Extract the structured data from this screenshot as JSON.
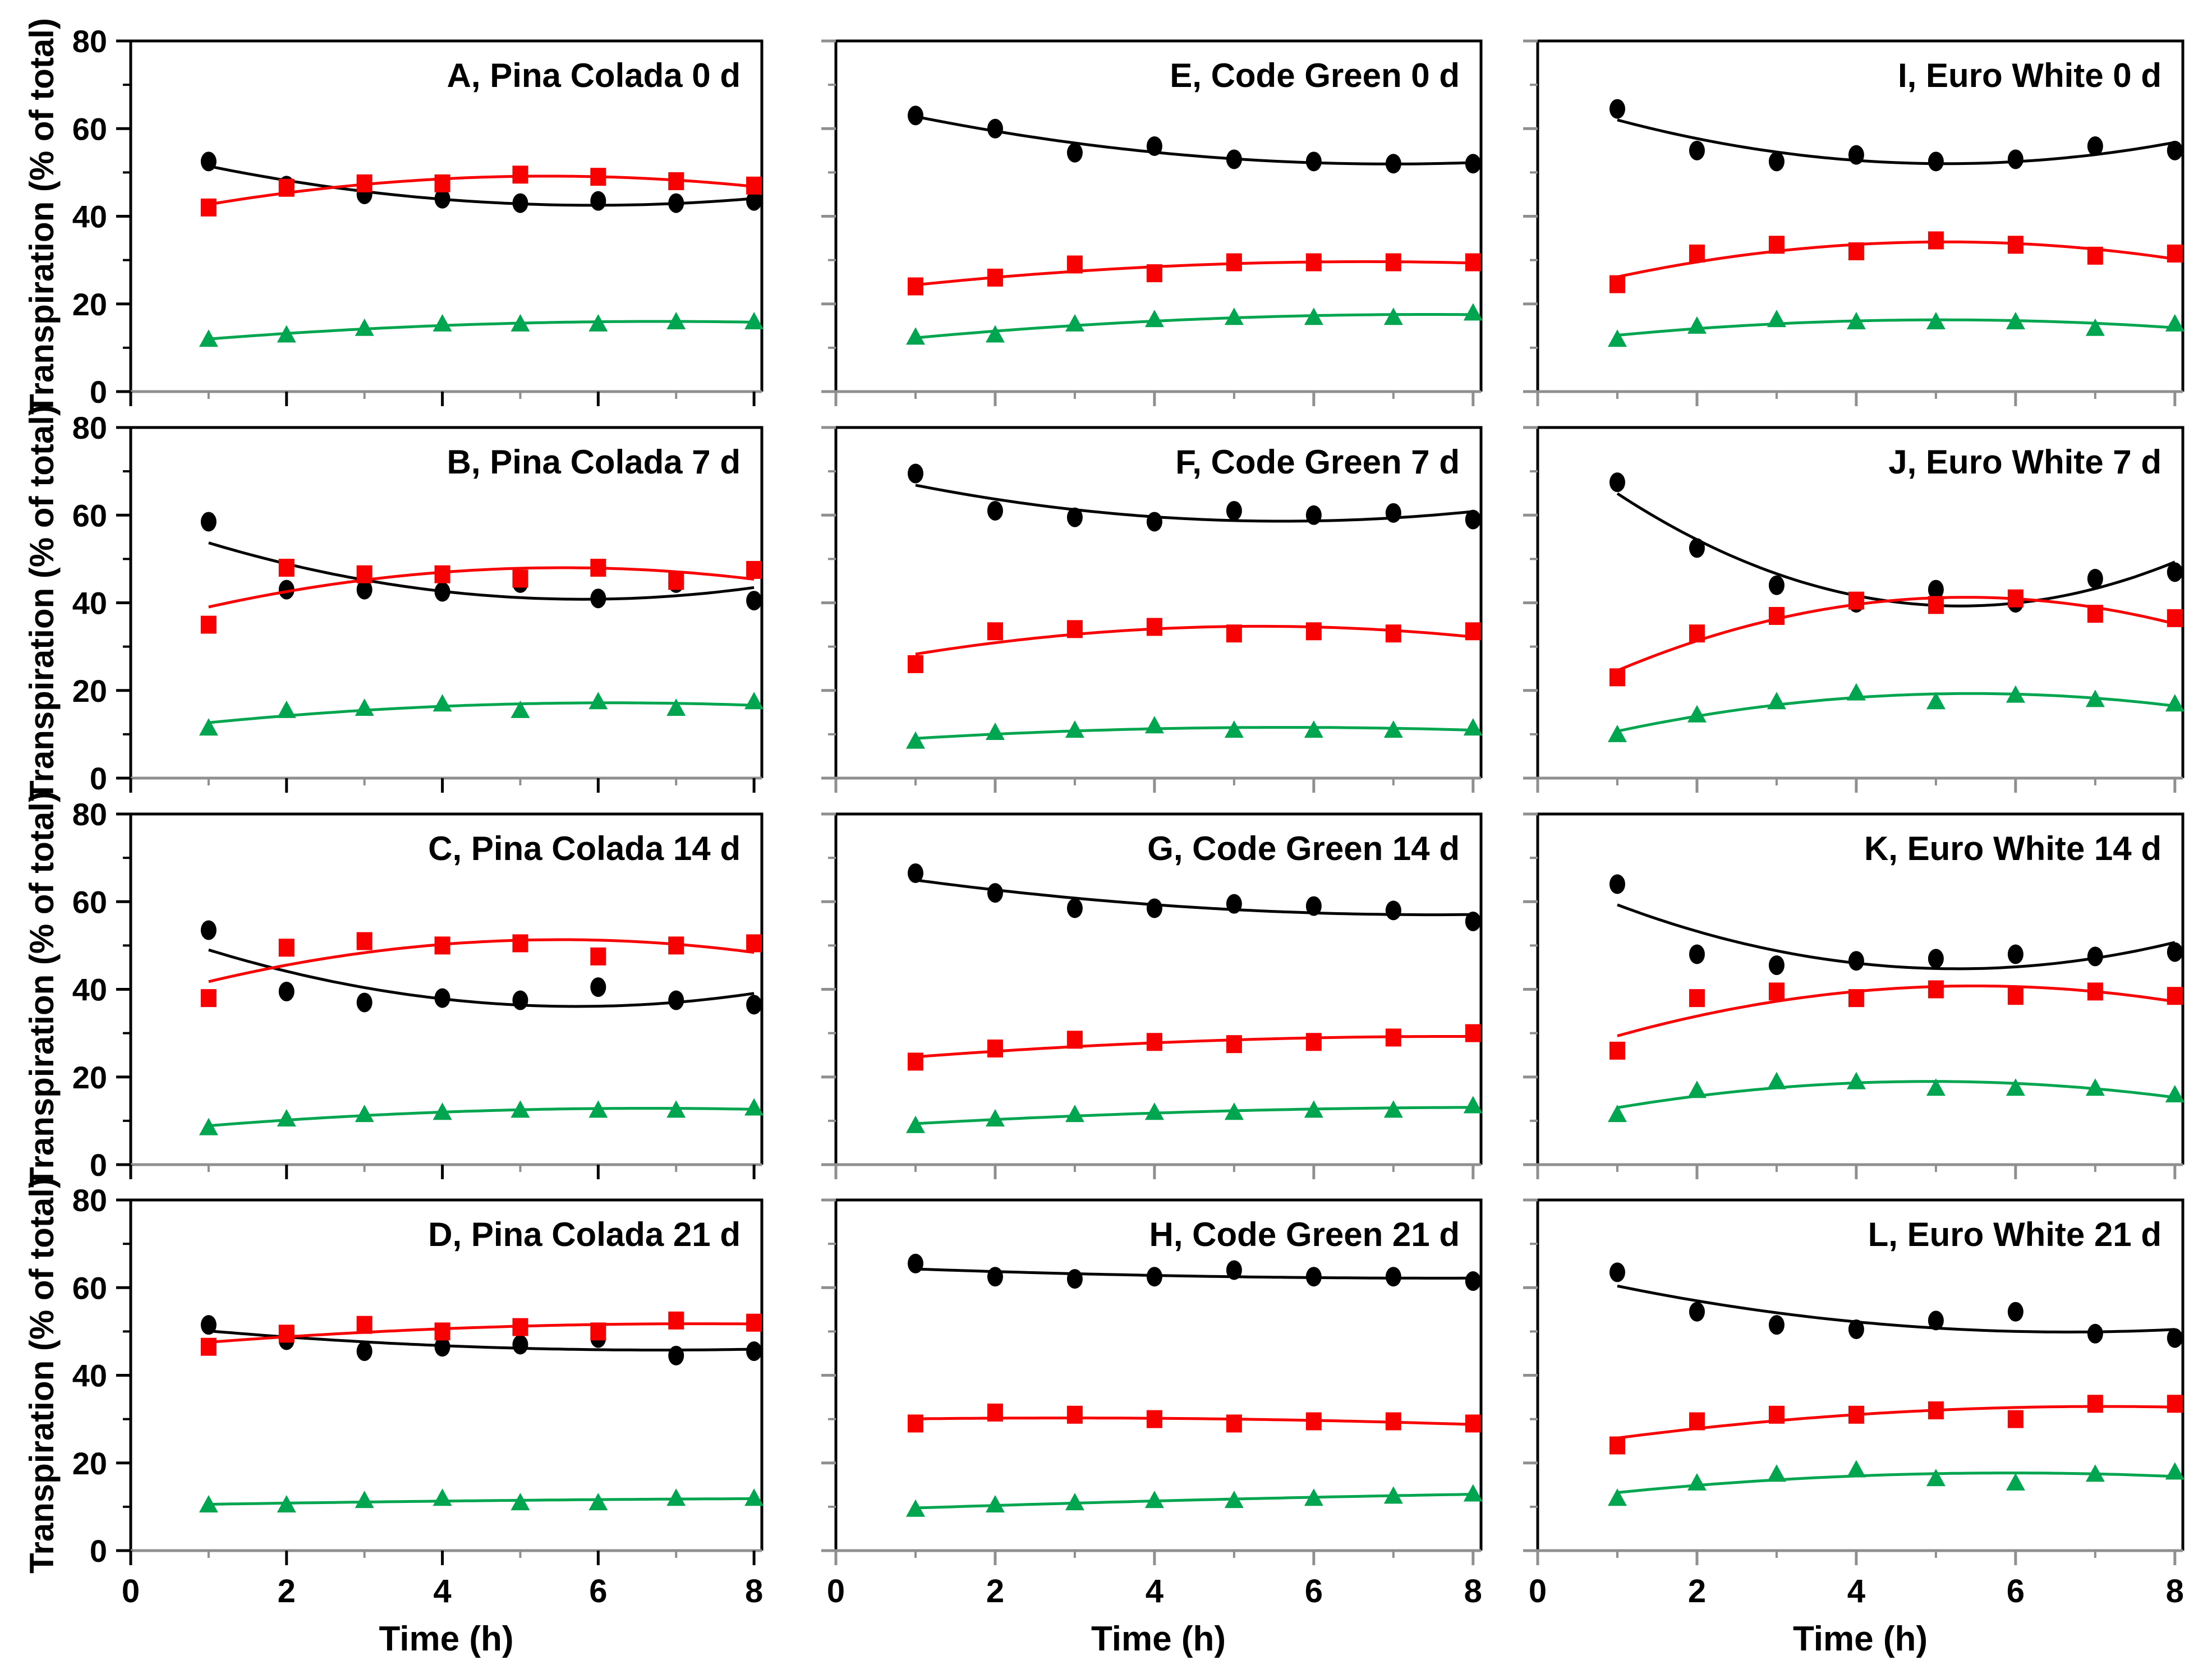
{
  "figure": {
    "description": "12-panel transpiration time-course figure, 3 cultivar columns by 4 storage-day rows",
    "columns": [
      "Pina Colada",
      "Code Green",
      "Euro White"
    ],
    "storage_days": [
      "0 d",
      "7 d",
      "14 d",
      "21 d"
    ]
  },
  "chart_data": {
    "type": "scatter",
    "x": [
      1,
      2,
      3,
      4,
      5,
      6,
      7,
      8
    ],
    "xlabel": "Time (h)",
    "ylabel": "Transpiration (% of total)",
    "xlim": [
      0,
      8.1
    ],
    "ylim": [
      0,
      80
    ],
    "x_ticks": [
      0,
      2,
      4,
      6,
      8
    ],
    "x_minor_ticks": [
      1,
      3,
      5,
      7
    ],
    "y_ticks": [
      0,
      20,
      40,
      60,
      80
    ],
    "y_minor_ticks": [
      10,
      30,
      50,
      70
    ],
    "grid": "off",
    "legend": "none",
    "fit": "quadratic-trendline-per-series",
    "series_style": {
      "black": {
        "marker": "circle",
        "color": "#000000"
      },
      "red": {
        "marker": "square",
        "color": "#F80000"
      },
      "green": {
        "marker": "triangle",
        "color": "#00A550"
      }
    },
    "panels": [
      {
        "id": "A",
        "title": "A, Pina Colada 0 d",
        "row": 0,
        "col": 0,
        "series": [
          {
            "name": "black-circle",
            "values": [
              52.5,
              47,
              45,
              44,
              43,
              43.5,
              43,
              43.5
            ]
          },
          {
            "name": "red-square",
            "values": [
              42,
              46.5,
              47.5,
              47.5,
              49.5,
              49,
              48,
              47
            ]
          },
          {
            "name": "green-triangle",
            "values": [
              12,
              13,
              14.5,
              15.5,
              15.5,
              15.5,
              16,
              16
            ]
          }
        ]
      },
      {
        "id": "B",
        "title": "B, Pina Colada 7 d",
        "row": 1,
        "col": 0,
        "series": [
          {
            "name": "black-circle",
            "values": [
              58.5,
              43,
              43,
              42.5,
              44.5,
              41,
              44.5,
              40.5
            ]
          },
          {
            "name": "red-square",
            "values": [
              35,
              48,
              46.5,
              46.5,
              45.5,
              48,
              45,
              47.5
            ]
          },
          {
            "name": "green-triangle",
            "values": [
              11.5,
              15.5,
              16,
              17,
              15.5,
              17.5,
              16,
              17.5
            ]
          }
        ]
      },
      {
        "id": "C",
        "title": "C, Pina Colada 14 d",
        "row": 2,
        "col": 0,
        "series": [
          {
            "name": "black-circle",
            "values": [
              53.5,
              39.5,
              37,
              38,
              37.5,
              40.5,
              37.5,
              36.5
            ]
          },
          {
            "name": "red-square",
            "values": [
              38,
              49.5,
              51,
              50,
              50.5,
              47.5,
              50,
              50.5
            ]
          },
          {
            "name": "green-triangle",
            "values": [
              8.5,
              10.5,
              11.5,
              12,
              12.5,
              12.5,
              12.5,
              13
            ]
          }
        ]
      },
      {
        "id": "D",
        "title": "D, Pina Colada 21 d",
        "row": 3,
        "col": 0,
        "series": [
          {
            "name": "black-circle",
            "values": [
              51.5,
              48,
              45.5,
              46.5,
              47,
              48.5,
              44.5,
              45.5
            ]
          },
          {
            "name": "red-square",
            "values": [
              46.5,
              49.5,
              51.5,
              50,
              51,
              50,
              52.5,
              52
            ]
          },
          {
            "name": "green-triangle",
            "values": [
              10.5,
              10.5,
              11.5,
              12,
              11,
              11,
              12,
              12
            ]
          }
        ]
      },
      {
        "id": "E",
        "title": "E, Code Green 0 d",
        "row": 0,
        "col": 1,
        "series": [
          {
            "name": "black-circle",
            "values": [
              63,
              60,
              54.5,
              56,
              53,
              52.5,
              52,
              52
            ]
          },
          {
            "name": "red-square",
            "values": [
              24,
              26,
              29,
              27,
              29.5,
              29.5,
              29.5,
              29.5
            ]
          },
          {
            "name": "green-triangle",
            "values": [
              12.5,
              13,
              15.5,
              16.5,
              17,
              17,
              17,
              18
            ]
          }
        ]
      },
      {
        "id": "F",
        "title": "F, Code Green 7 d",
        "row": 1,
        "col": 1,
        "series": [
          {
            "name": "black-circle",
            "values": [
              69.5,
              61,
              59.5,
              58.5,
              61,
              60,
              60.5,
              59
            ]
          },
          {
            "name": "red-square",
            "values": [
              26,
              33.5,
              34,
              34.5,
              33,
              33.5,
              33,
              33.5
            ]
          },
          {
            "name": "green-triangle",
            "values": [
              8.5,
              10.5,
              11,
              12,
              11,
              11,
              11,
              11.5
            ]
          }
        ]
      },
      {
        "id": "G",
        "title": "G, Code Green 14 d",
        "row": 2,
        "col": 1,
        "series": [
          {
            "name": "black-circle",
            "values": [
              66.5,
              62,
              58.5,
              58.5,
              59.5,
              59,
              58,
              55.5
            ]
          },
          {
            "name": "red-square",
            "values": [
              23.5,
              26.5,
              28.5,
              28,
              27.5,
              28,
              29,
              30
            ]
          },
          {
            "name": "green-triangle",
            "values": [
              9,
              10.5,
              11.5,
              12,
              12,
              12.5,
              12.5,
              13.5
            ]
          }
        ]
      },
      {
        "id": "H",
        "title": "H, Code Green 21 d",
        "row": 3,
        "col": 1,
        "series": [
          {
            "name": "black-circle",
            "values": [
              65.5,
              62.5,
              62,
              62.5,
              64,
              62.5,
              62.5,
              61.5
            ]
          },
          {
            "name": "red-square",
            "values": [
              29,
              31.5,
              31,
              30,
              29,
              29.5,
              29.5,
              29
            ]
          },
          {
            "name": "green-triangle",
            "values": [
              9.5,
              10.5,
              11,
              11.5,
              11.5,
              12,
              12.5,
              13
            ]
          }
        ]
      },
      {
        "id": "I",
        "title": "I, Euro White 0 d",
        "row": 0,
        "col": 2,
        "series": [
          {
            "name": "black-circle",
            "values": [
              64.5,
              55,
              52.5,
              54,
              52.5,
              53,
              56,
              55
            ]
          },
          {
            "name": "red-square",
            "values": [
              24.5,
              31.5,
              33.5,
              32,
              34.5,
              33.5,
              31,
              31.5
            ]
          },
          {
            "name": "green-triangle",
            "values": [
              12,
              15,
              16.5,
              16,
              16,
              16,
              14.5,
              15.5
            ]
          }
        ]
      },
      {
        "id": "J",
        "title": "J, Euro White 7 d",
        "row": 1,
        "col": 2,
        "series": [
          {
            "name": "black-circle",
            "values": [
              67.5,
              52.5,
              44,
              40,
              43,
              40,
              45.5,
              47
            ]
          },
          {
            "name": "red-square",
            "values": [
              23,
              33,
              37,
              40.5,
              39.5,
              41,
              37.5,
              36.5
            ]
          },
          {
            "name": "green-triangle",
            "values": [
              10,
              14.5,
              17.5,
              19.5,
              17.5,
              19,
              18,
              17
            ]
          }
        ]
      },
      {
        "id": "K",
        "title": "K, Euro White 14 d",
        "row": 2,
        "col": 2,
        "series": [
          {
            "name": "black-circle",
            "values": [
              64,
              48,
              45.5,
              46.5,
              47,
              48,
              47.5,
              48.5
            ]
          },
          {
            "name": "red-square",
            "values": [
              26,
              38,
              39.5,
              38,
              40,
              38.5,
              39.5,
              38.5
            ]
          },
          {
            "name": "green-triangle",
            "values": [
              11.5,
              17,
              19,
              19,
              17.5,
              17.5,
              17.5,
              16
            ]
          }
        ]
      },
      {
        "id": "L",
        "title": "L, Euro White 21 d",
        "row": 3,
        "col": 2,
        "series": [
          {
            "name": "black-circle",
            "values": [
              63.5,
              54.5,
              51.5,
              50.5,
              52.5,
              54.5,
              49.5,
              48.5
            ]
          },
          {
            "name": "red-square",
            "values": [
              24,
              29.5,
              31,
              31,
              32,
              30,
              33.5,
              33.5
            ]
          },
          {
            "name": "green-triangle",
            "values": [
              12,
              15.5,
              17.5,
              18.5,
              16.5,
              15.5,
              17.5,
              18
            ]
          }
        ]
      }
    ]
  }
}
